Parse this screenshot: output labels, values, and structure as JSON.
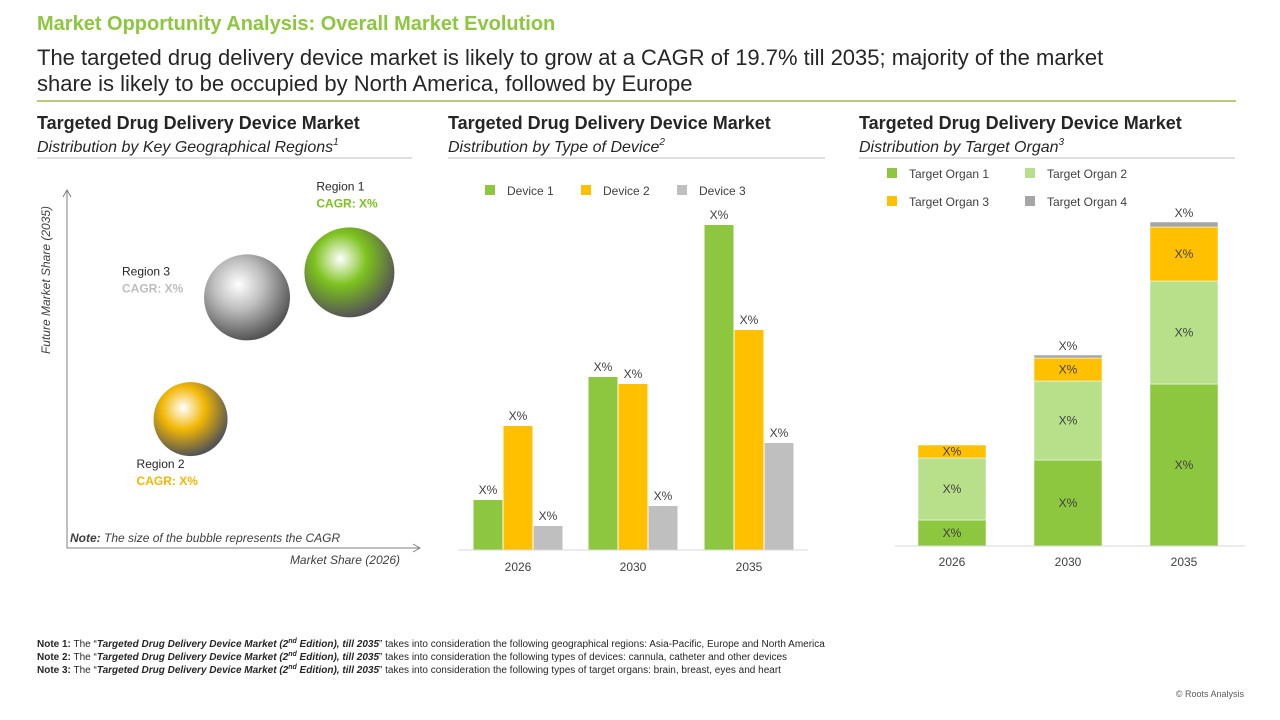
{
  "header": {
    "title": "Market Opportunity Analysis: Overall Market Evolution",
    "subtitle_lines": [
      "The targeted drug delivery device market is likely to grow at a CAGR of 19.7% till 2035; majority of the market",
      "share is likely to be occupied by North America, followed by Europe"
    ]
  },
  "chart_data": [
    {
      "type": "bubble",
      "title": "Targeted Drug Delivery Device Market",
      "subtitle": "Distribution by Key Geographical Regions",
      "subtitle_sup": "1",
      "xlabel": "Market Share (2026)",
      "ylabel": "Future Market Share (2035)",
      "note_label": "Note:",
      "note": "The size of the bubble represents the CAGR",
      "xlim": [
        0,
        100
      ],
      "ylim": [
        0,
        100
      ],
      "series": [
        {
          "name": "Region 1",
          "label": "CAGR: X%",
          "color": "#7dc21e",
          "x": 80,
          "y": 77,
          "size": 45
        },
        {
          "name": "Region 3",
          "label": "CAGR: X%",
          "color": "#bdbdbd",
          "x": 51,
          "y": 70,
          "size": 43
        },
        {
          "name": "Region 2",
          "label": "CAGR: X%",
          "color": "#f2b705",
          "x": 35,
          "y": 36,
          "size": 37
        }
      ]
    },
    {
      "type": "bar",
      "title": "Targeted Drug Delivery Device Market",
      "subtitle": "Distribution by Type of Device",
      "subtitle_sup": "2",
      "categories": [
        "2026",
        "2030",
        "2035"
      ],
      "ylim": [
        0,
        340
      ],
      "series": [
        {
          "name": "Device 1",
          "color": "#8dc63f",
          "values": [
            50,
            173,
            325
          ],
          "value_labels": [
            "X%",
            "X%",
            "X%"
          ]
        },
        {
          "name": "Device 2",
          "color": "#ffc000",
          "values": [
            124,
            166,
            220
          ],
          "value_labels": [
            "X%",
            "X%",
            "X%"
          ]
        },
        {
          "name": "Device 3",
          "color": "#bfbfbf",
          "values": [
            24,
            44,
            107
          ],
          "value_labels": [
            "X%",
            "X%",
            "X%"
          ]
        }
      ]
    },
    {
      "type": "stacked-bar",
      "title": "Targeted Drug Delivery Device Market",
      "subtitle": "Distribution by Target Organ",
      "subtitle_sup": "3",
      "categories": [
        "2026",
        "2030",
        "2035"
      ],
      "ylim": [
        0,
        340
      ],
      "series": [
        {
          "name": "Target Organ 1",
          "color": "#8dc63f",
          "values": [
            26,
            86,
            162
          ],
          "value_labels": [
            "X%",
            "X%",
            "X%"
          ]
        },
        {
          "name": "Target Organ 2",
          "color": "#b8e08a",
          "values": [
            62,
            79,
            103
          ],
          "value_labels": [
            "X%",
            "X%",
            "X%"
          ]
        },
        {
          "name": "Target Organ 3",
          "color": "#ffc000",
          "values": [
            13,
            23,
            54
          ],
          "value_labels": [
            "X%",
            "X%",
            "X%"
          ]
        },
        {
          "name": "Target Organ 4",
          "color": "#a6a6a6",
          "values": [
            null,
            3,
            5
          ],
          "value_labels": [
            null,
            "X%",
            "X%"
          ]
        }
      ]
    }
  ],
  "notes": [
    {
      "label": "Note 1:",
      "before": " The “",
      "report": "Targeted Drug Delivery Device Market (2",
      "report_sup": "nd",
      "report_after": " Edition), till 2035",
      "after": "” takes into consideration the following geographical regions: Asia-Pacific, Europe and North America"
    },
    {
      "label": "Note 2:",
      "before": " The “",
      "report": "Targeted Drug Delivery Device Market (2",
      "report_sup": "nd",
      "report_after": " Edition), till 2035",
      "after": "” takes into consideration the following types of devices: cannula, catheter and other devices"
    },
    {
      "label": "Note 3:",
      "before": " The “",
      "report": "Targeted Drug Delivery Device Market (2",
      "report_sup": "nd",
      "report_after": " Edition), till 2035",
      "after": "” takes into consideration the following types of target organs: brain, breast, eyes and heart"
    }
  ],
  "copyright": "© Roots Analysis"
}
